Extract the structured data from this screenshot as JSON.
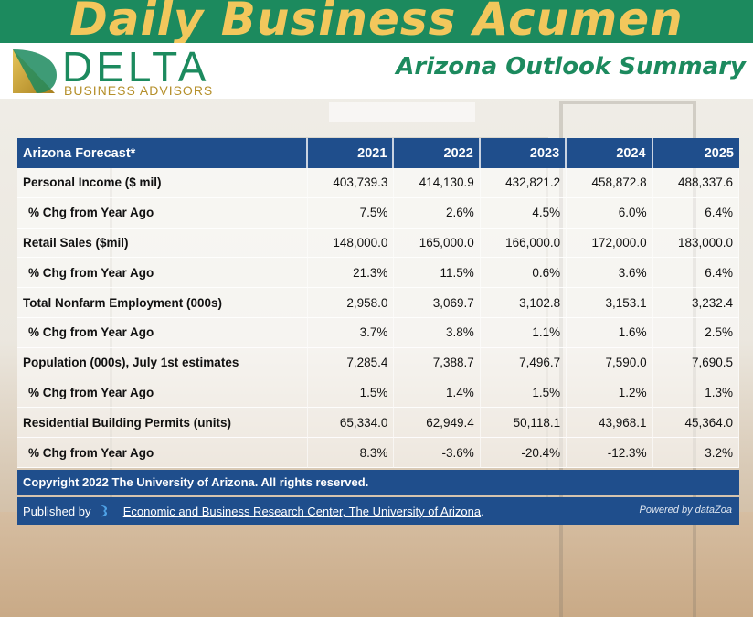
{
  "header": {
    "title": "Daily Business Acumen",
    "subtitle": "Arizona Outlook Summary",
    "brand_name": "DELTA",
    "brand_sub": "BUSINESS ADVISORS"
  },
  "colors": {
    "green": "#1c8a5e",
    "gold": "#f2c75c",
    "table_blue": "#1f4e8c"
  },
  "table": {
    "headers": [
      "Arizona Forecast*",
      "2021",
      "2022",
      "2023",
      "2024",
      "2025"
    ],
    "rows": [
      {
        "label": "Personal Income ($ mil)",
        "values": [
          "403,739.3",
          "414,130.9",
          "432,821.2",
          "458,872.8",
          "488,337.6"
        ]
      },
      {
        "label": "% Chg from Year Ago",
        "values": [
          "7.5%",
          "2.6%",
          "4.5%",
          "6.0%",
          "6.4%"
        ]
      },
      {
        "label": "Retail Sales ($mil)",
        "values": [
          "148,000.0",
          "165,000.0",
          "166,000.0",
          "172,000.0",
          "183,000.0"
        ]
      },
      {
        "label": "% Chg from Year Ago",
        "values": [
          "21.3%",
          "11.5%",
          "0.6%",
          "3.6%",
          "6.4%"
        ]
      },
      {
        "label": "Total Nonfarm Employment (000s)",
        "values": [
          "2,958.0",
          "3,069.7",
          "3,102.8",
          "3,153.1",
          "3,232.4"
        ]
      },
      {
        "label": "% Chg from Year Ago",
        "values": [
          "3.7%",
          "3.8%",
          "1.1%",
          "1.6%",
          "2.5%"
        ]
      },
      {
        "label": "Population (000s), July 1st estimates",
        "values": [
          "7,285.4",
          "7,388.7",
          "7,496.7",
          "7,590.0",
          "7,690.5"
        ]
      },
      {
        "label": "% Chg from Year Ago",
        "values": [
          "1.5%",
          "1.4%",
          "1.5%",
          "1.2%",
          "1.3%"
        ]
      },
      {
        "label": "Residential Building Permits (units)",
        "values": [
          "65,334.0",
          "62,949.4",
          "50,118.1",
          "43,968.1",
          "45,364.0"
        ]
      },
      {
        "label": "% Chg from Year Ago",
        "values": [
          "8.3%",
          "-3.6%",
          "-20.4%",
          "-12.3%",
          "3.2%"
        ]
      }
    ]
  },
  "footer": {
    "copyright": "Copyright 2022 The University of Arizona. All rights reserved.",
    "published_prefix": "Published by",
    "published_link": "Economic and Business Research Center, The University of Arizona",
    "published_suffix": ".",
    "powered_by": "Powered by dataZoa"
  }
}
